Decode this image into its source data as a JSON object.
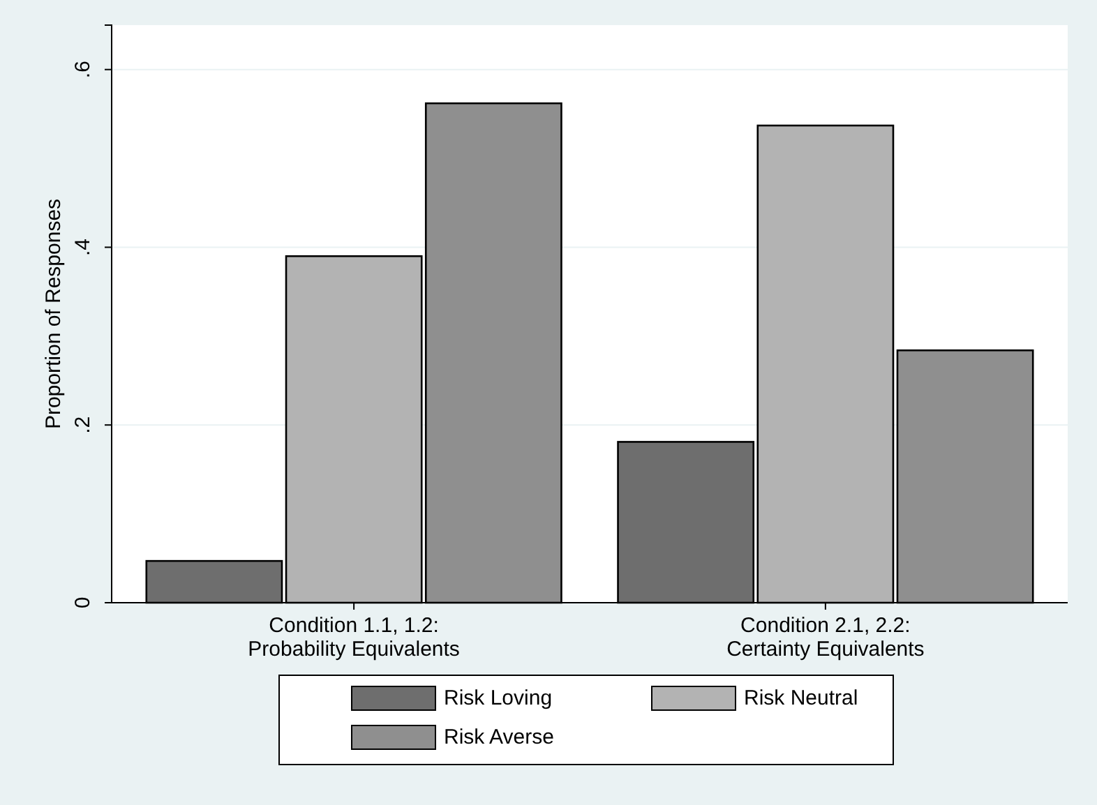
{
  "chart_data": {
    "type": "bar",
    "ylabel": "Proportion of Responses",
    "categories": [
      "Condition 1.1, 1.2:\nProbability Equivalents",
      "Condition 2.1, 2.2:\nCertainty Equivalents"
    ],
    "series": [
      {
        "name": "Risk Loving",
        "color": "#6e6e6e",
        "values": [
          0.047,
          0.181
        ]
      },
      {
        "name": "Risk Neutral",
        "color": "#b3b3b3",
        "values": [
          0.39,
          0.537
        ]
      },
      {
        "name": "Risk Averse",
        "color": "#8f8f8f",
        "values": [
          0.562,
          0.284
        ]
      }
    ],
    "ylim": [
      0,
      0.65
    ],
    "yticks": [
      {
        "value": 0,
        "label": "0"
      },
      {
        "value": 0.2,
        "label": ".2"
      },
      {
        "value": 0.4,
        "label": ".4"
      },
      {
        "value": 0.6,
        "label": ".6"
      }
    ],
    "grid": "y",
    "legend": "bottom"
  }
}
